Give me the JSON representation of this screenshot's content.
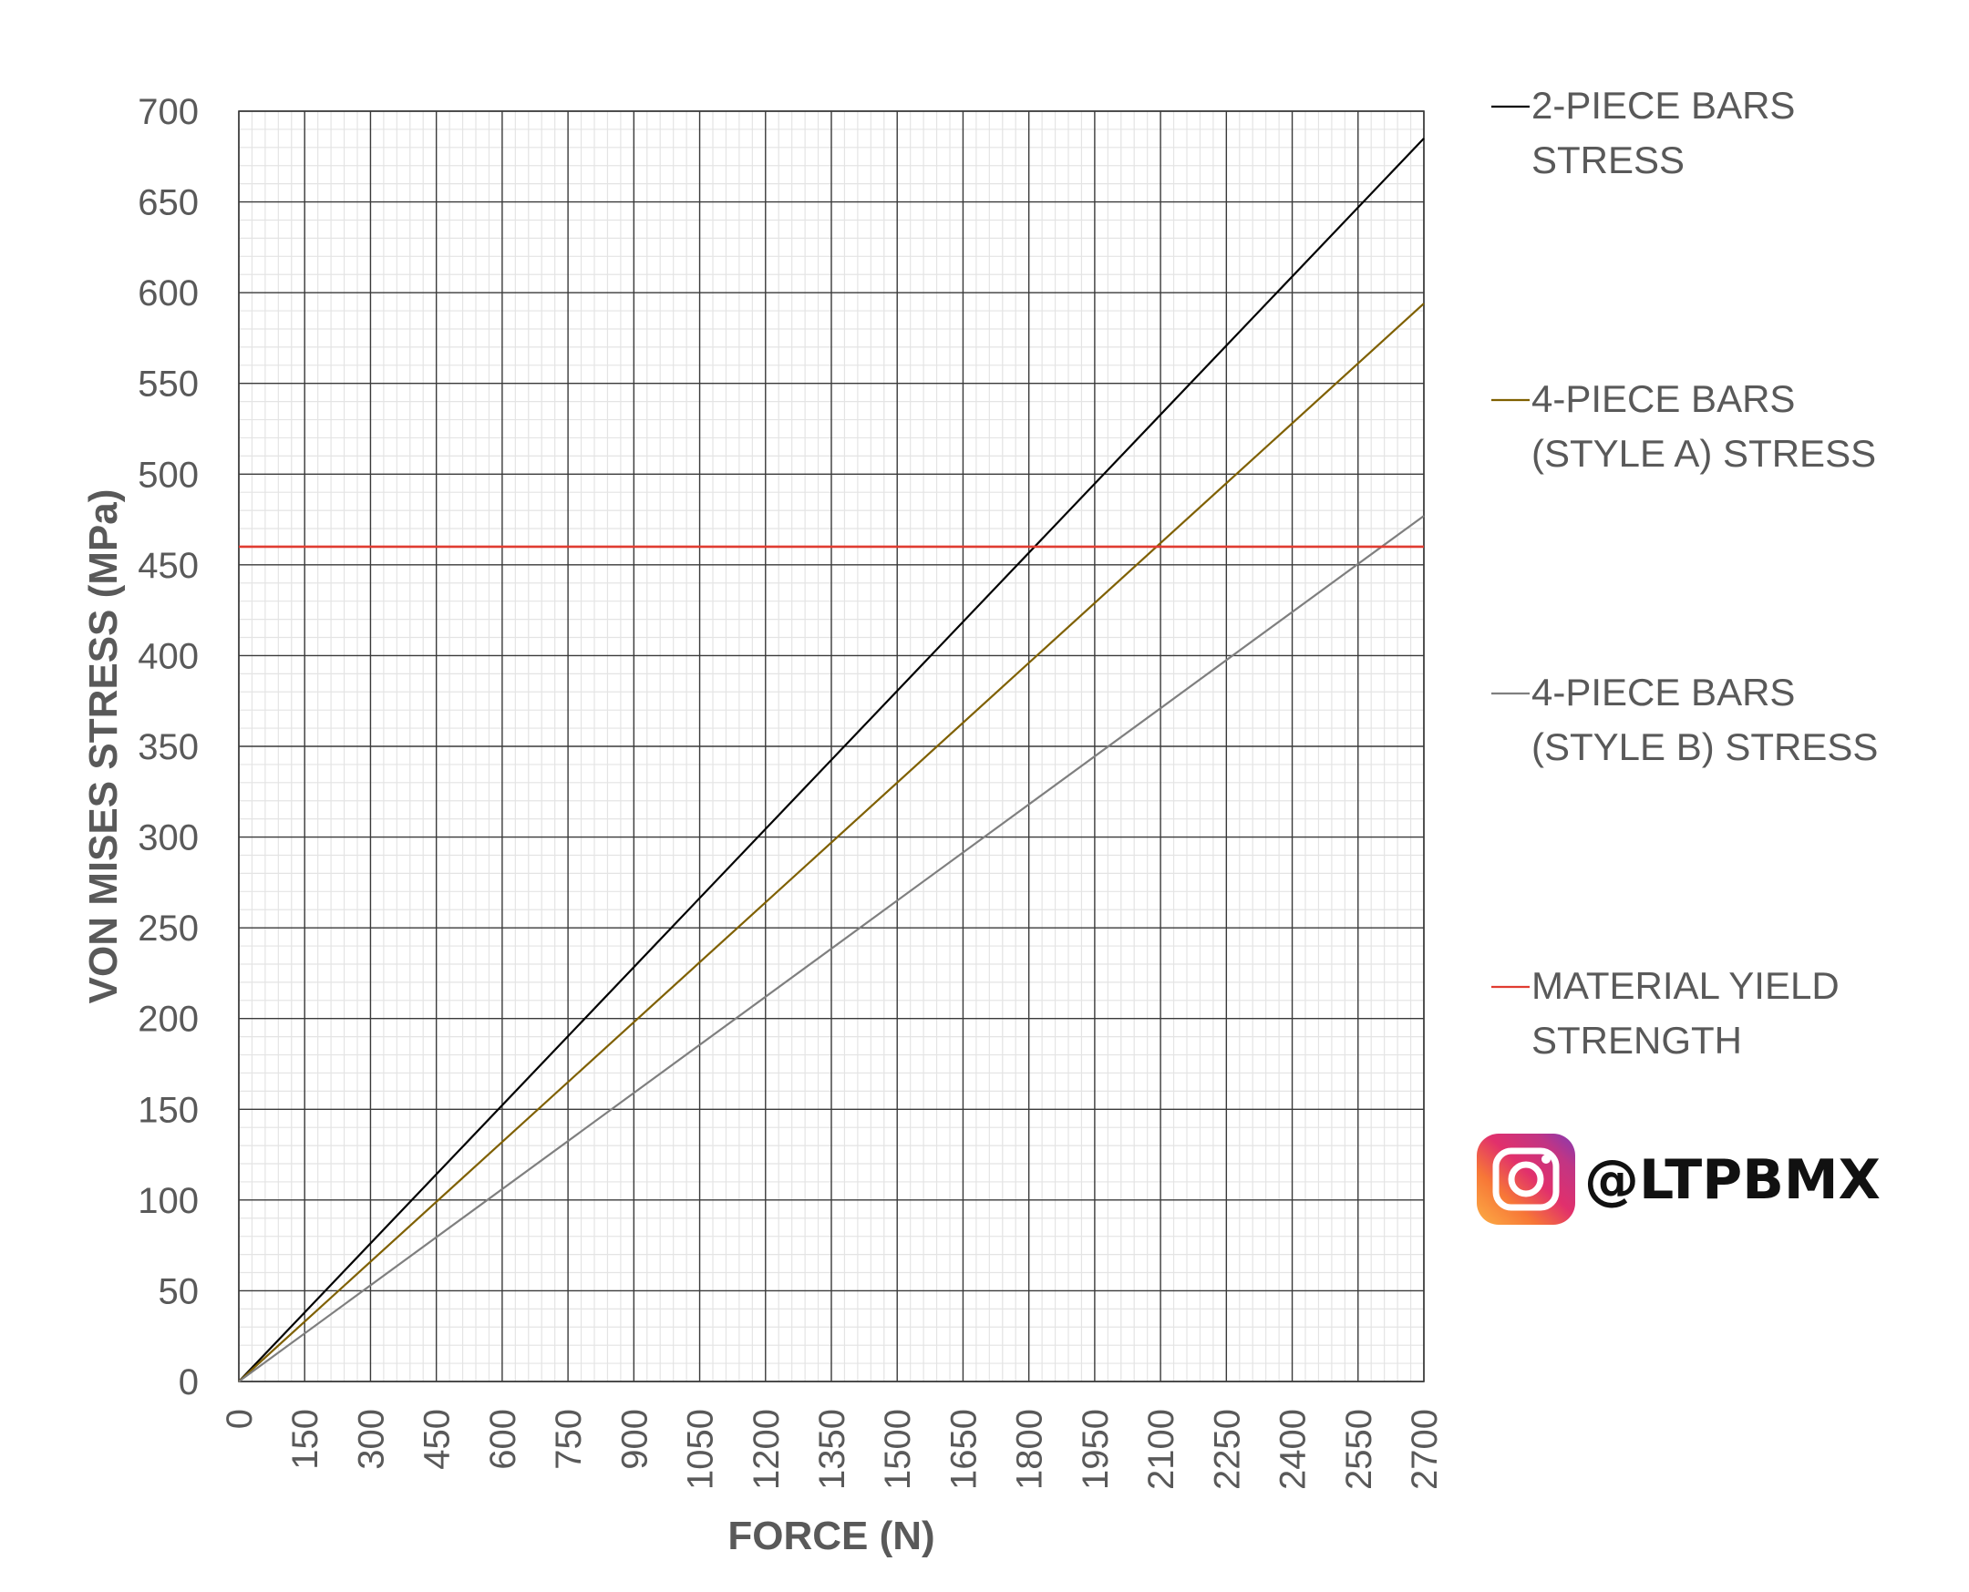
{
  "chart_data": {
    "type": "line",
    "title": "",
    "xlabel": "FORCE (N)",
    "ylabel": "VON MISES STRESS (MPa)",
    "xlim": [
      0,
      2700
    ],
    "ylim": [
      0,
      700
    ],
    "x_ticks": [
      0,
      150,
      300,
      450,
      600,
      750,
      900,
      1050,
      1200,
      1350,
      1500,
      1650,
      1800,
      1950,
      2100,
      2250,
      2400,
      2550,
      2700
    ],
    "y_ticks": [
      0,
      50,
      100,
      150,
      200,
      250,
      300,
      350,
      400,
      450,
      500,
      550,
      600,
      650,
      700
    ],
    "x_tick_labels": [
      "0",
      "150",
      "300",
      "450",
      "600",
      "750",
      "900",
      "1050",
      "1200",
      "1350",
      "1500",
      "1650",
      "1800",
      "1950",
      "2100",
      "2250",
      "2400",
      "2550",
      "2700"
    ],
    "y_tick_labels": [
      "0",
      "50",
      "100",
      "150",
      "200",
      "250",
      "300",
      "350",
      "400",
      "450",
      "500",
      "550",
      "600",
      "650",
      "700"
    ],
    "grid": {
      "major": true,
      "minor": true,
      "minor_per_major": 5
    },
    "legend_position": "right",
    "series": [
      {
        "name": "2-PIECE BARS STRESS",
        "legend_lines": [
          "2-PIECE BARS",
          "STRESS"
        ],
        "color": "#000000",
        "x": [
          0,
          2700
        ],
        "y": [
          0,
          685
        ]
      },
      {
        "name": "4-PIECE BARS (STYLE A) STRESS",
        "legend_lines": [
          "4-PIECE BARS",
          "(STYLE A) STRESS"
        ],
        "color": "#7f6000",
        "x": [
          0,
          2700
        ],
        "y": [
          0,
          594
        ]
      },
      {
        "name": "4-PIECE BARS (STYLE B) STRESS",
        "legend_lines": [
          "4-PIECE BARS",
          "(STYLE B) STRESS"
        ],
        "color": "#7f7f7f",
        "x": [
          0,
          2700
        ],
        "y": [
          0,
          477
        ]
      },
      {
        "name": "MATERIAL YIELD STRENGTH",
        "legend_lines": [
          "MATERIAL YIELD",
          "STRENGTH"
        ],
        "color": "#e03c31",
        "x": [
          0,
          2700
        ],
        "y": [
          460,
          460
        ]
      }
    ]
  },
  "watermark": {
    "handle": "@LTPBMX",
    "icon": "instagram-icon"
  }
}
